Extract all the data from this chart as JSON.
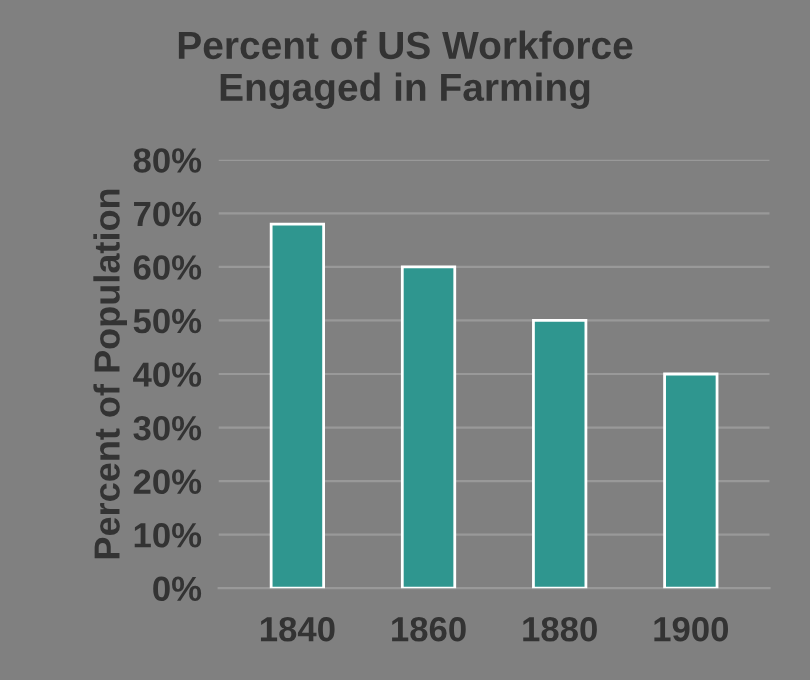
{
  "chart_data": {
    "type": "bar",
    "title": "Percent of US Workforce\nEngaged in Farming",
    "ylabel": "Percent of Population",
    "categories": [
      "1840",
      "1860",
      "1880",
      "1900"
    ],
    "values": [
      68,
      60,
      50,
      40
    ],
    "color": "#2f968f",
    "ylim": [
      0,
      80
    ],
    "yticks": [
      {
        "value": 0,
        "label": "0%"
      },
      {
        "value": 10,
        "label": "10%"
      },
      {
        "value": 20,
        "label": "20%"
      },
      {
        "value": 30,
        "label": "30%"
      },
      {
        "value": 40,
        "label": "40%"
      },
      {
        "value": 50,
        "label": "50%"
      },
      {
        "value": 60,
        "label": "60%"
      },
      {
        "value": 70,
        "label": "70%"
      },
      {
        "value": 80,
        "label": "80%"
      }
    ],
    "grid": "y"
  }
}
